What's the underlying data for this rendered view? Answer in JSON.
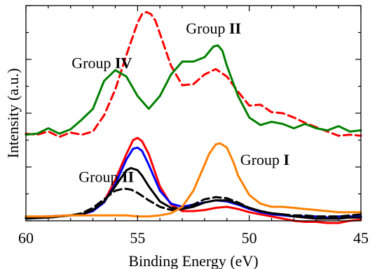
{
  "chart_data": {
    "type": "line",
    "title": "",
    "xlabel": "Binding Energy (eV)",
    "ylabel": "Intensity (a.u.)",
    "xlim": [
      60,
      45
    ],
    "x_reversed": true,
    "xticks": [
      "60",
      "55",
      "50",
      "45"
    ],
    "x_tick_values": [
      60,
      55,
      50,
      45
    ],
    "ylim": [
      0,
      10
    ],
    "yticks_shown": false,
    "grid": false,
    "legend": "none",
    "annotations": [
      {
        "prefix": "Group ",
        "bold": "IV",
        "x": 56.6,
        "y": 7.1
      },
      {
        "prefix": "Group ",
        "bold": "II",
        "x": 51.6,
        "y": 8.7
      },
      {
        "prefix": "Group ",
        "bold": "I",
        "x": 49.3,
        "y": 2.6
      },
      {
        "prefix": "Group ",
        "bold": "II",
        "x": 56.4,
        "y": 1.8
      }
    ],
    "series": [
      {
        "color": "#ff0000",
        "dash": true,
        "group": "upper",
        "x": [
          60,
          59.5,
          59,
          58.5,
          58,
          57.5,
          57,
          56.5,
          56,
          55.5,
          55,
          54.8,
          54.6,
          54.4,
          54.2,
          54,
          53.5,
          53,
          52.5,
          52,
          51.5,
          51,
          50.5,
          50,
          49.5,
          49,
          48.5,
          48,
          47.5,
          47,
          46.5,
          46,
          45.5,
          45
        ],
        "y": [
          4.05,
          4.0,
          4.15,
          3.9,
          4.1,
          4.0,
          4.15,
          4.9,
          6.1,
          7.7,
          9.2,
          9.6,
          9.7,
          9.6,
          9.3,
          8.7,
          7.2,
          6.3,
          6.35,
          6.8,
          7.05,
          6.7,
          6.0,
          5.35,
          5.4,
          5.05,
          5.0,
          4.8,
          4.55,
          4.35,
          4.15,
          3.95,
          4.0,
          3.95
        ]
      },
      {
        "color": "#008000",
        "dash": false,
        "group": "upper",
        "x": [
          60,
          59.5,
          59,
          58.5,
          58,
          57.5,
          57,
          56.5,
          56,
          55.5,
          55,
          54.5,
          54,
          53.5,
          53,
          52.5,
          52,
          51.6,
          51.4,
          51.2,
          51,
          50.5,
          50,
          49.5,
          49,
          48.5,
          48,
          47.5,
          47,
          46.5,
          46,
          45.5,
          45
        ],
        "y": [
          4.0,
          4.05,
          4.3,
          4.05,
          4.25,
          4.7,
          5.2,
          6.5,
          7.0,
          6.7,
          5.8,
          5.2,
          5.8,
          6.8,
          7.4,
          7.4,
          7.6,
          8.1,
          8.15,
          7.9,
          7.2,
          5.8,
          4.8,
          4.45,
          4.6,
          4.5,
          4.3,
          4.5,
          4.3,
          4.2,
          4.4,
          4.15,
          4.2
        ]
      },
      {
        "color": "#ff0000",
        "dash": false,
        "group": "lower",
        "x": [
          60,
          59,
          58,
          57.5,
          57,
          56.5,
          56,
          55.5,
          55.2,
          55,
          54.8,
          54.5,
          54,
          53.5,
          53,
          52.5,
          52,
          51.5,
          51,
          50.5,
          50,
          49.5,
          49,
          48.5,
          48,
          47.5,
          47,
          46.5,
          46,
          45.5,
          45
        ],
        "y": [
          0.15,
          0.2,
          0.25,
          0.3,
          0.45,
          0.9,
          1.9,
          3.1,
          3.75,
          3.85,
          3.7,
          3.1,
          1.6,
          0.75,
          0.45,
          0.45,
          0.5,
          0.6,
          0.65,
          0.55,
          0.4,
          0.3,
          0.2,
          0.1,
          0.0,
          -0.05,
          -0.05,
          -0.1,
          -0.1,
          0.0,
          0.05
        ]
      },
      {
        "color": "#0000ff",
        "dash": false,
        "group": "lower",
        "x": [
          60,
          59,
          58,
          57.5,
          57,
          56.5,
          56,
          55.5,
          55.2,
          55,
          54.8,
          54.5,
          54,
          53.5,
          53,
          52.5,
          52,
          51.5,
          51,
          50.5,
          50,
          49.5,
          49,
          48.5,
          48,
          47.5,
          47,
          46.5,
          46,
          45.5,
          45
        ],
        "y": [
          0.15,
          0.2,
          0.25,
          0.3,
          0.45,
          0.85,
          1.7,
          2.85,
          3.35,
          3.4,
          3.25,
          2.6,
          1.4,
          0.8,
          0.65,
          0.75,
          0.85,
          0.95,
          0.9,
          0.75,
          0.55,
          0.4,
          0.3,
          0.25,
          0.2,
          0.2,
          0.2,
          0.15,
          0.2,
          0.2,
          0.2
        ]
      },
      {
        "color": "#000000",
        "dash": false,
        "group": "lower",
        "x": [
          60,
          59,
          58,
          57.5,
          57,
          56.5,
          56,
          55.5,
          55.3,
          55,
          54.8,
          54.5,
          54,
          53.5,
          53,
          52.5,
          52,
          51.5,
          51,
          50.5,
          50,
          49.5,
          49,
          48.5,
          48,
          47.5,
          47,
          46.5,
          46,
          45.5,
          45
        ],
        "y": [
          0.1,
          0.15,
          0.25,
          0.3,
          0.5,
          0.9,
          1.6,
          2.35,
          2.45,
          2.35,
          2.1,
          1.6,
          0.9,
          0.6,
          0.55,
          0.65,
          0.85,
          0.95,
          0.95,
          0.8,
          0.6,
          0.45,
          0.35,
          0.3,
          0.2,
          0.15,
          0.1,
          0.1,
          0.1,
          0.15,
          0.15
        ]
      },
      {
        "color": "#000000",
        "dash": true,
        "group": "lower",
        "x": [
          60,
          59,
          58,
          57.5,
          57,
          56.5,
          56,
          55.6,
          55.3,
          55,
          54.5,
          54,
          53.5,
          53,
          52.5,
          52,
          51.5,
          51,
          50.5,
          50,
          49.5,
          49,
          48.5,
          48,
          47.5,
          47,
          46.5,
          46,
          45.5,
          45
        ],
        "y": [
          0.15,
          0.15,
          0.25,
          0.35,
          0.6,
          1.0,
          1.4,
          1.5,
          1.45,
          1.3,
          0.95,
          0.65,
          0.5,
          0.55,
          0.75,
          1.0,
          1.1,
          1.05,
          0.85,
          0.6,
          0.45,
          0.35,
          0.3,
          0.25,
          0.25,
          0.2,
          0.2,
          0.2,
          0.25,
          0.3
        ]
      },
      {
        "color": "#ff8000",
        "dash": false,
        "group": "lower",
        "x": [
          60,
          59,
          58,
          57,
          56,
          55.5,
          55,
          54.5,
          54,
          53.5,
          53,
          52.5,
          52,
          51.8,
          51.5,
          51.3,
          51,
          50.7,
          50.5,
          50,
          49.5,
          49,
          48.5,
          48,
          47.5,
          47,
          46.5,
          46,
          45.5,
          45
        ],
        "y": [
          0.2,
          0.2,
          0.25,
          0.25,
          0.25,
          0.25,
          0.2,
          0.2,
          0.25,
          0.35,
          0.65,
          1.4,
          2.6,
          3.1,
          3.55,
          3.6,
          3.4,
          2.7,
          2.1,
          1.2,
          0.8,
          0.65,
          0.65,
          0.6,
          0.55,
          0.5,
          0.45,
          0.4,
          0.4,
          0.4
        ]
      }
    ]
  }
}
